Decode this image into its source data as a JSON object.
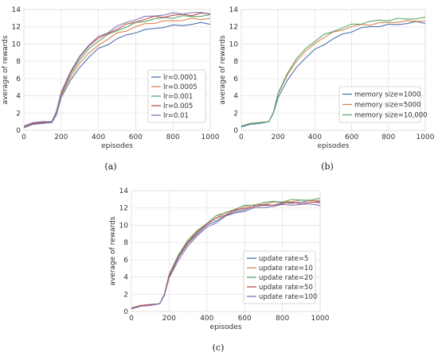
{
  "chart_data": [
    {
      "type": "line",
      "caption": "(a)",
      "xlabel": "episodes",
      "ylabel": "average of rewards",
      "xlim": [
        0,
        1000
      ],
      "ylim": [
        0,
        14
      ],
      "xticks": [
        "0",
        "200",
        "400",
        "600",
        "800",
        "1000"
      ],
      "yticks": [
        "0",
        "2",
        "4",
        "6",
        "8",
        "10",
        "12",
        "14"
      ],
      "grid": true,
      "legend_position": "lower-right",
      "x": [
        0,
        50,
        100,
        150,
        175,
        200,
        250,
        300,
        350,
        400,
        450,
        500,
        550,
        600,
        650,
        700,
        750,
        800,
        850,
        900,
        950,
        1000
      ],
      "series": [
        {
          "name": "lr=0.0001",
          "color": "#4c72b0",
          "values": [
            0.3,
            0.7,
            0.8,
            0.9,
            1.8,
            3.8,
            5.8,
            7.3,
            8.5,
            9.4,
            10.0,
            10.6,
            11.0,
            11.4,
            11.6,
            11.8,
            12.0,
            12.1,
            12.2,
            12.3,
            12.4,
            12.4
          ]
        },
        {
          "name": "lr=0.0005",
          "color": "#dd8452",
          "values": [
            0.4,
            0.8,
            0.9,
            1.0,
            2.0,
            4.0,
            6.2,
            7.8,
            9.0,
            9.9,
            10.6,
            11.2,
            11.6,
            12.0,
            12.3,
            12.5,
            12.6,
            12.7,
            12.8,
            12.9,
            12.9,
            13.0
          ]
        },
        {
          "name": "lr=0.001",
          "color": "#55a868",
          "values": [
            0.5,
            0.8,
            0.9,
            1.0,
            2.1,
            4.2,
            6.5,
            8.2,
            9.5,
            10.4,
            11.0,
            11.6,
            12.0,
            12.4,
            12.7,
            12.9,
            13.0,
            13.1,
            13.2,
            13.2,
            13.3,
            13.3
          ]
        },
        {
          "name": "lr=0.005",
          "color": "#c44e52",
          "values": [
            0.5,
            0.8,
            0.9,
            1.0,
            2.2,
            4.3,
            6.7,
            8.5,
            9.8,
            10.6,
            11.2,
            11.8,
            12.2,
            12.6,
            12.9,
            13.1,
            13.2,
            13.3,
            13.4,
            13.4,
            13.5,
            13.5
          ]
        },
        {
          "name": "lr=0.01",
          "color": "#8172b2",
          "values": [
            0.5,
            0.9,
            1.0,
            1.0,
            2.2,
            4.4,
            6.8,
            8.6,
            9.9,
            10.8,
            11.4,
            12.0,
            12.5,
            12.9,
            13.1,
            13.3,
            13.4,
            13.5,
            13.6,
            13.6,
            13.6,
            13.6
          ]
        }
      ]
    },
    {
      "type": "line",
      "caption": "(b)",
      "xlabel": "episodes",
      "ylabel": "average of rewards",
      "xlim": [
        0,
        1000
      ],
      "ylim": [
        0,
        14
      ],
      "xticks": [
        "0",
        "200",
        "400",
        "600",
        "800",
        "1000"
      ],
      "yticks": [
        "0",
        "2",
        "4",
        "6",
        "8",
        "10",
        "12",
        "14"
      ],
      "grid": true,
      "legend_position": "lower-right",
      "x": [
        0,
        50,
        100,
        150,
        175,
        200,
        250,
        300,
        350,
        400,
        450,
        500,
        550,
        600,
        650,
        700,
        750,
        800,
        850,
        900,
        950,
        1000
      ],
      "series": [
        {
          "name": "memory size=1000",
          "color": "#4c72b0",
          "values": [
            0.4,
            0.7,
            0.8,
            1.0,
            2.0,
            3.8,
            5.8,
            7.3,
            8.4,
            9.3,
            10.0,
            10.6,
            11.1,
            11.5,
            11.8,
            12.0,
            12.1,
            12.2,
            12.3,
            12.4,
            12.5,
            12.5
          ]
        },
        {
          "name": "memory size=5000",
          "color": "#dd8452",
          "values": [
            0.5,
            0.8,
            0.9,
            1.0,
            2.1,
            4.2,
            6.4,
            8.0,
            9.2,
            10.1,
            10.8,
            11.3,
            11.7,
            12.0,
            12.2,
            12.3,
            12.4,
            12.5,
            12.6,
            12.6,
            12.7,
            12.7
          ]
        },
        {
          "name": "memory size=10,000",
          "color": "#55a868",
          "values": [
            0.5,
            0.8,
            0.9,
            1.0,
            2.1,
            4.3,
            6.6,
            8.3,
            9.5,
            10.4,
            11.0,
            11.5,
            11.9,
            12.2,
            12.4,
            12.6,
            12.7,
            12.8,
            12.9,
            12.9,
            13.0,
            13.0
          ]
        }
      ]
    },
    {
      "type": "line",
      "caption": "(c)",
      "xlabel": "episodes",
      "ylabel": "average of rewards",
      "xlim": [
        0,
        1000
      ],
      "ylim": [
        0,
        14
      ],
      "xticks": [
        "0",
        "200",
        "400",
        "600",
        "800",
        "1000"
      ],
      "yticks": [
        "0",
        "2",
        "4",
        "6",
        "8",
        "10",
        "12",
        "14"
      ],
      "grid": true,
      "legend_position": "lower-right",
      "x": [
        0,
        50,
        100,
        150,
        175,
        200,
        250,
        300,
        350,
        400,
        450,
        500,
        550,
        600,
        650,
        700,
        750,
        800,
        850,
        900,
        950,
        1000
      ],
      "series": [
        {
          "name": "update rate=5",
          "color": "#4c72b0",
          "values": [
            0.4,
            0.7,
            0.8,
            0.9,
            2.0,
            4.1,
            6.3,
            7.9,
            9.0,
            9.9,
            10.6,
            11.1,
            11.5,
            11.9,
            12.1,
            12.3,
            12.4,
            12.5,
            12.6,
            12.7,
            12.8,
            12.8
          ]
        },
        {
          "name": "update rate=10",
          "color": "#dd8452",
          "values": [
            0.4,
            0.7,
            0.8,
            0.9,
            2.0,
            4.2,
            6.5,
            8.1,
            9.3,
            10.2,
            10.9,
            11.4,
            11.8,
            12.1,
            12.3,
            12.5,
            12.6,
            12.7,
            12.8,
            12.8,
            12.9,
            12.9
          ]
        },
        {
          "name": "update rate=20",
          "color": "#55a868",
          "values": [
            0.4,
            0.7,
            0.8,
            0.9,
            2.0,
            4.3,
            6.6,
            8.3,
            9.4,
            10.3,
            11.0,
            11.5,
            11.9,
            12.2,
            12.4,
            12.6,
            12.7,
            12.8,
            12.9,
            12.9,
            13.0,
            13.0
          ]
        },
        {
          "name": "update rate=50",
          "color": "#c44e52",
          "values": [
            0.4,
            0.7,
            0.8,
            0.9,
            2.0,
            4.2,
            6.4,
            8.0,
            9.2,
            10.1,
            10.8,
            11.3,
            11.7,
            12.0,
            12.2,
            12.3,
            12.4,
            12.5,
            12.6,
            12.6,
            12.6,
            12.6
          ]
        },
        {
          "name": "update rate=100",
          "color": "#8172b2",
          "values": [
            0.3,
            0.6,
            0.7,
            0.9,
            1.9,
            3.9,
            6.0,
            7.6,
            8.8,
            9.7,
            10.4,
            11.0,
            11.4,
            11.7,
            11.9,
            12.1,
            12.2,
            12.3,
            12.4,
            12.4,
            12.4,
            12.4
          ]
        }
      ]
    }
  ]
}
